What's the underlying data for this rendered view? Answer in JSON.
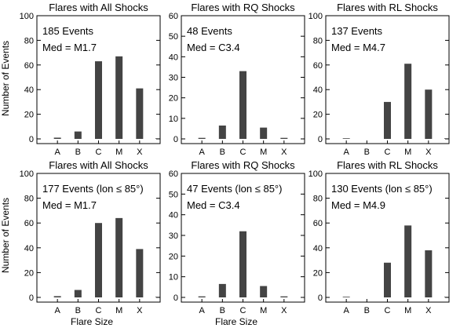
{
  "figure": {
    "ylabel": "Number of Events",
    "xlabel": "Flare Size"
  },
  "chart_data": [
    {
      "type": "bar",
      "title": "Flares with All Shocks",
      "categories": [
        "A",
        "B",
        "C",
        "M",
        "X"
      ],
      "values": [
        1,
        6,
        63,
        67,
        41
      ],
      "tail_bar": 0.5,
      "ylim": [
        0,
        100
      ],
      "yticks": [
        0,
        20,
        40,
        60,
        80,
        100
      ],
      "annotation": [
        "185 Events",
        "Med = M1.7"
      ]
    },
    {
      "type": "bar",
      "title": "Flares with RQ Shocks",
      "categories": [
        "A",
        "B",
        "C",
        "M",
        "X"
      ],
      "values": [
        0.5,
        6.5,
        33,
        5.5,
        0.5
      ],
      "tail_bar": 0,
      "ylim": [
        0,
        60
      ],
      "yticks": [
        0,
        10,
        20,
        30,
        40,
        50,
        60
      ],
      "annotation": [
        "48 Events",
        "Med = C3.4"
      ]
    },
    {
      "type": "bar",
      "title": "Flares with RL Shocks",
      "categories": [
        "A",
        "B",
        "C",
        "M",
        "X"
      ],
      "values": [
        0.5,
        0,
        30,
        61,
        40
      ],
      "tail_bar": 0.5,
      "ylim": [
        0,
        100
      ],
      "yticks": [
        0,
        20,
        40,
        60,
        80,
        100
      ],
      "annotation": [
        "137 Events",
        "Med = M4.7"
      ]
    },
    {
      "type": "bar",
      "title": "Flares with All Shocks",
      "categories": [
        "A",
        "B",
        "C",
        "M",
        "X"
      ],
      "values": [
        1,
        6,
        60,
        64,
        39
      ],
      "tail_bar": 0.5,
      "ylim": [
        0,
        100
      ],
      "yticks": [
        0,
        20,
        40,
        60,
        80,
        100
      ],
      "annotation": [
        "177 Events (lon ≤ 85°)",
        "Med = M1.7"
      ]
    },
    {
      "type": "bar",
      "title": "Flares with RQ Shocks",
      "categories": [
        "A",
        "B",
        "C",
        "M",
        "X"
      ],
      "values": [
        0.5,
        6.5,
        32,
        5.5,
        0.5
      ],
      "tail_bar": 0,
      "ylim": [
        0,
        60
      ],
      "yticks": [
        0,
        10,
        20,
        30,
        40,
        50,
        60
      ],
      "annotation": [
        "47 Events (lon ≤ 85°)",
        "Med = C3.4"
      ]
    },
    {
      "type": "bar",
      "title": "Flares with RL Shocks",
      "categories": [
        "A",
        "B",
        "C",
        "M",
        "X"
      ],
      "values": [
        0.5,
        0,
        28,
        58,
        38
      ],
      "tail_bar": 0.5,
      "ylim": [
        0,
        100
      ],
      "yticks": [
        0,
        20,
        40,
        60,
        80,
        100
      ],
      "annotation": [
        "130 Events (lon ≤ 85°)",
        "Med = M4.9"
      ]
    }
  ]
}
